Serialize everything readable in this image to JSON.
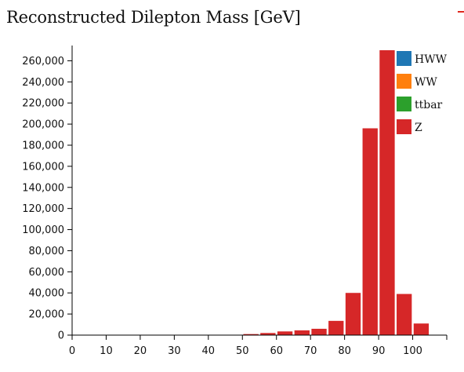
{
  "chart_data": {
    "type": "bar",
    "stacked": true,
    "title": "Reconstructed Dilepton Mass [GeV]",
    "xlabel": "",
    "ylabel": "",
    "xlim": [
      0,
      110
    ],
    "ylim": [
      0,
      270000
    ],
    "bin_width": 5,
    "grid": false,
    "legend_position": "top-right",
    "x_ticks": [
      0,
      10,
      20,
      30,
      40,
      50,
      60,
      70,
      80,
      90,
      100
    ],
    "y_ticks": [
      0,
      20000,
      40000,
      60000,
      80000,
      100000,
      120000,
      140000,
      160000,
      180000,
      200000,
      220000,
      240000,
      260000
    ],
    "x": [
      50,
      55,
      60,
      65,
      70,
      75,
      80,
      85,
      90,
      95,
      100
    ],
    "series": [
      {
        "name": "HWW",
        "color": "#1f77b4",
        "values": [
          0,
          0,
          0,
          0,
          0,
          0,
          0,
          0,
          0,
          0,
          0
        ]
      },
      {
        "name": "WW",
        "color": "#ff7f0e",
        "values": [
          0,
          0,
          0,
          0,
          0,
          0,
          0,
          0,
          0,
          0,
          0
        ]
      },
      {
        "name": "ttbar",
        "color": "#2ca02c",
        "values": [
          0,
          0,
          0,
          0,
          0,
          0,
          0,
          0,
          0,
          0,
          0
        ]
      },
      {
        "name": "Z",
        "color": "#d62728",
        "values": [
          1000,
          2000,
          3500,
          4500,
          6000,
          13500,
          40000,
          196000,
          270000,
          39000,
          11000
        ]
      }
    ]
  }
}
